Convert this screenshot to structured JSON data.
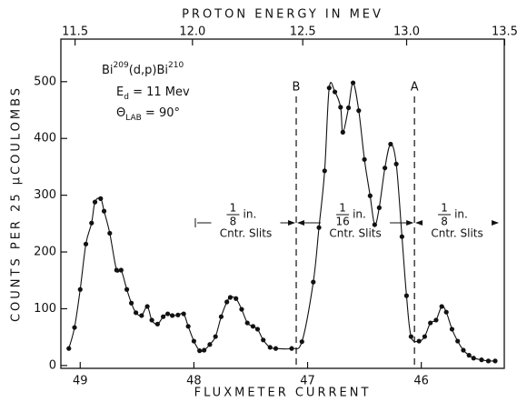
{
  "chart_data": {
    "type": "line",
    "markers": true,
    "color": "#111111",
    "x_label": "FLUXMETER CURRENT",
    "x2_label": "PROTON ENERGY IN MEV",
    "y_label": "COUNTS PER 25 μCOULOMBS",
    "xlim": [
      49.17,
      45.27
    ],
    "xticks": [
      49,
      48,
      47,
      46
    ],
    "x2lim": [
      11.44,
      13.5
    ],
    "x2ticks": [
      11.5,
      {
        "value": 12,
        "label": "12.0"
      },
      12.5,
      {
        "value": 13,
        "label": "13.0"
      },
      13.5
    ],
    "ylim": [
      -5,
      575
    ],
    "yticks": [
      0,
      100,
      200,
      300,
      400,
      500
    ],
    "x": [
      49.1,
      49.05,
      49.0,
      48.95,
      48.9,
      48.87,
      48.82,
      48.79,
      48.74,
      48.68,
      48.64,
      48.59,
      48.55,
      48.51,
      48.46,
      48.41,
      48.37,
      48.32,
      48.27,
      48.23,
      48.19,
      48.14,
      48.09,
      48.05,
      48.0,
      47.95,
      47.91,
      47.86,
      47.81,
      47.76,
      47.71,
      47.68,
      47.63,
      47.58,
      47.53,
      47.48,
      47.44,
      47.39,
      47.33,
      47.28,
      47.14,
      47.05,
      46.95,
      46.9,
      46.85,
      46.81,
      46.76,
      46.71,
      46.69,
      46.64,
      46.6,
      46.55,
      46.5,
      46.45,
      46.41,
      46.37,
      46.32,
      46.27,
      46.22,
      46.17,
      46.13,
      46.09,
      46.02,
      45.97,
      45.92,
      45.87,
      45.82,
      45.78,
      45.73,
      45.68,
      45.63,
      45.58,
      45.54,
      45.47,
      45.41,
      45.35
    ],
    "values": [
      30,
      67,
      134,
      214,
      251,
      288,
      294,
      272,
      233,
      168,
      168,
      134,
      110,
      93,
      88,
      104,
      80,
      73,
      86,
      91,
      88,
      89,
      91,
      69,
      43,
      26,
      27,
      37,
      51,
      86,
      112,
      120,
      118,
      99,
      75,
      69,
      64,
      45,
      32,
      30,
      30,
      42,
      147,
      243,
      343,
      489,
      482,
      455,
      411,
      454,
      498,
      449,
      363,
      299,
      248,
      278,
      348,
      390,
      355,
      227,
      123,
      51,
      43,
      51,
      75,
      80,
      104,
      94,
      64,
      43,
      27,
      18,
      13,
      10,
      8,
      8
    ],
    "vlines": [
      {
        "x": 47.1,
        "label": "B"
      },
      {
        "x": 46.06,
        "label": "A"
      }
    ],
    "reaction": [
      "Bi",
      "209",
      "(d,p)Bi",
      "210"
    ],
    "energy": [
      "E",
      "d",
      " = 11 Mev"
    ],
    "angle": [
      "Θ",
      "LAB",
      " = 90°"
    ],
    "slits": [
      {
        "num": "1",
        "den": "8",
        "unit": "in.",
        "text": "Cntr. Slits"
      },
      {
        "num": "1",
        "den": "16",
        "unit": "in.",
        "text": "Cntr. Slits"
      },
      {
        "num": "1",
        "den": "8",
        "unit": "in.",
        "text": "Cntr. Slits"
      }
    ]
  }
}
